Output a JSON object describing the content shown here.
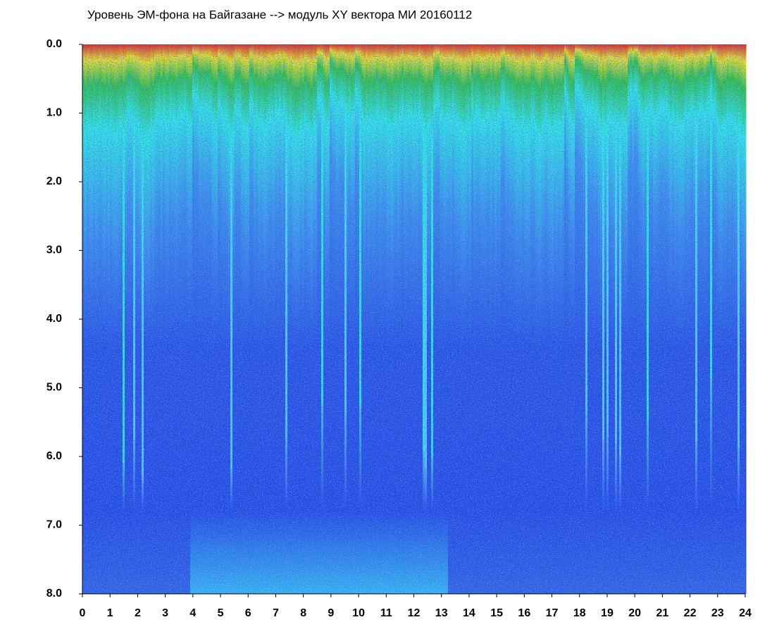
{
  "chart_data": {
    "type": "heatmap",
    "title": "Уровень ЭМ-фона на Байгазане  -->  модуль XY вектора МИ  20160112",
    "xlim": [
      0,
      24
    ],
    "xticks": [
      0,
      1,
      2,
      3,
      4,
      5,
      6,
      7,
      8,
      9,
      10,
      11,
      12,
      13,
      14,
      15,
      16,
      17,
      18,
      19,
      20,
      21,
      22,
      23,
      24
    ],
    "ylim": [
      8,
      0
    ],
    "yticks": [
      {
        "value": 0,
        "label": "0.0"
      },
      {
        "value": 1,
        "label": "1.0"
      },
      {
        "value": 2,
        "label": "2.0"
      },
      {
        "value": 3,
        "label": "3.0"
      },
      {
        "value": 4,
        "label": "4.0"
      },
      {
        "value": 5,
        "label": "5.0"
      },
      {
        "value": 6,
        "label": "6.0"
      },
      {
        "value": 7,
        "label": "7.0"
      },
      {
        "value": 8,
        "label": "8.0"
      }
    ]
  }
}
